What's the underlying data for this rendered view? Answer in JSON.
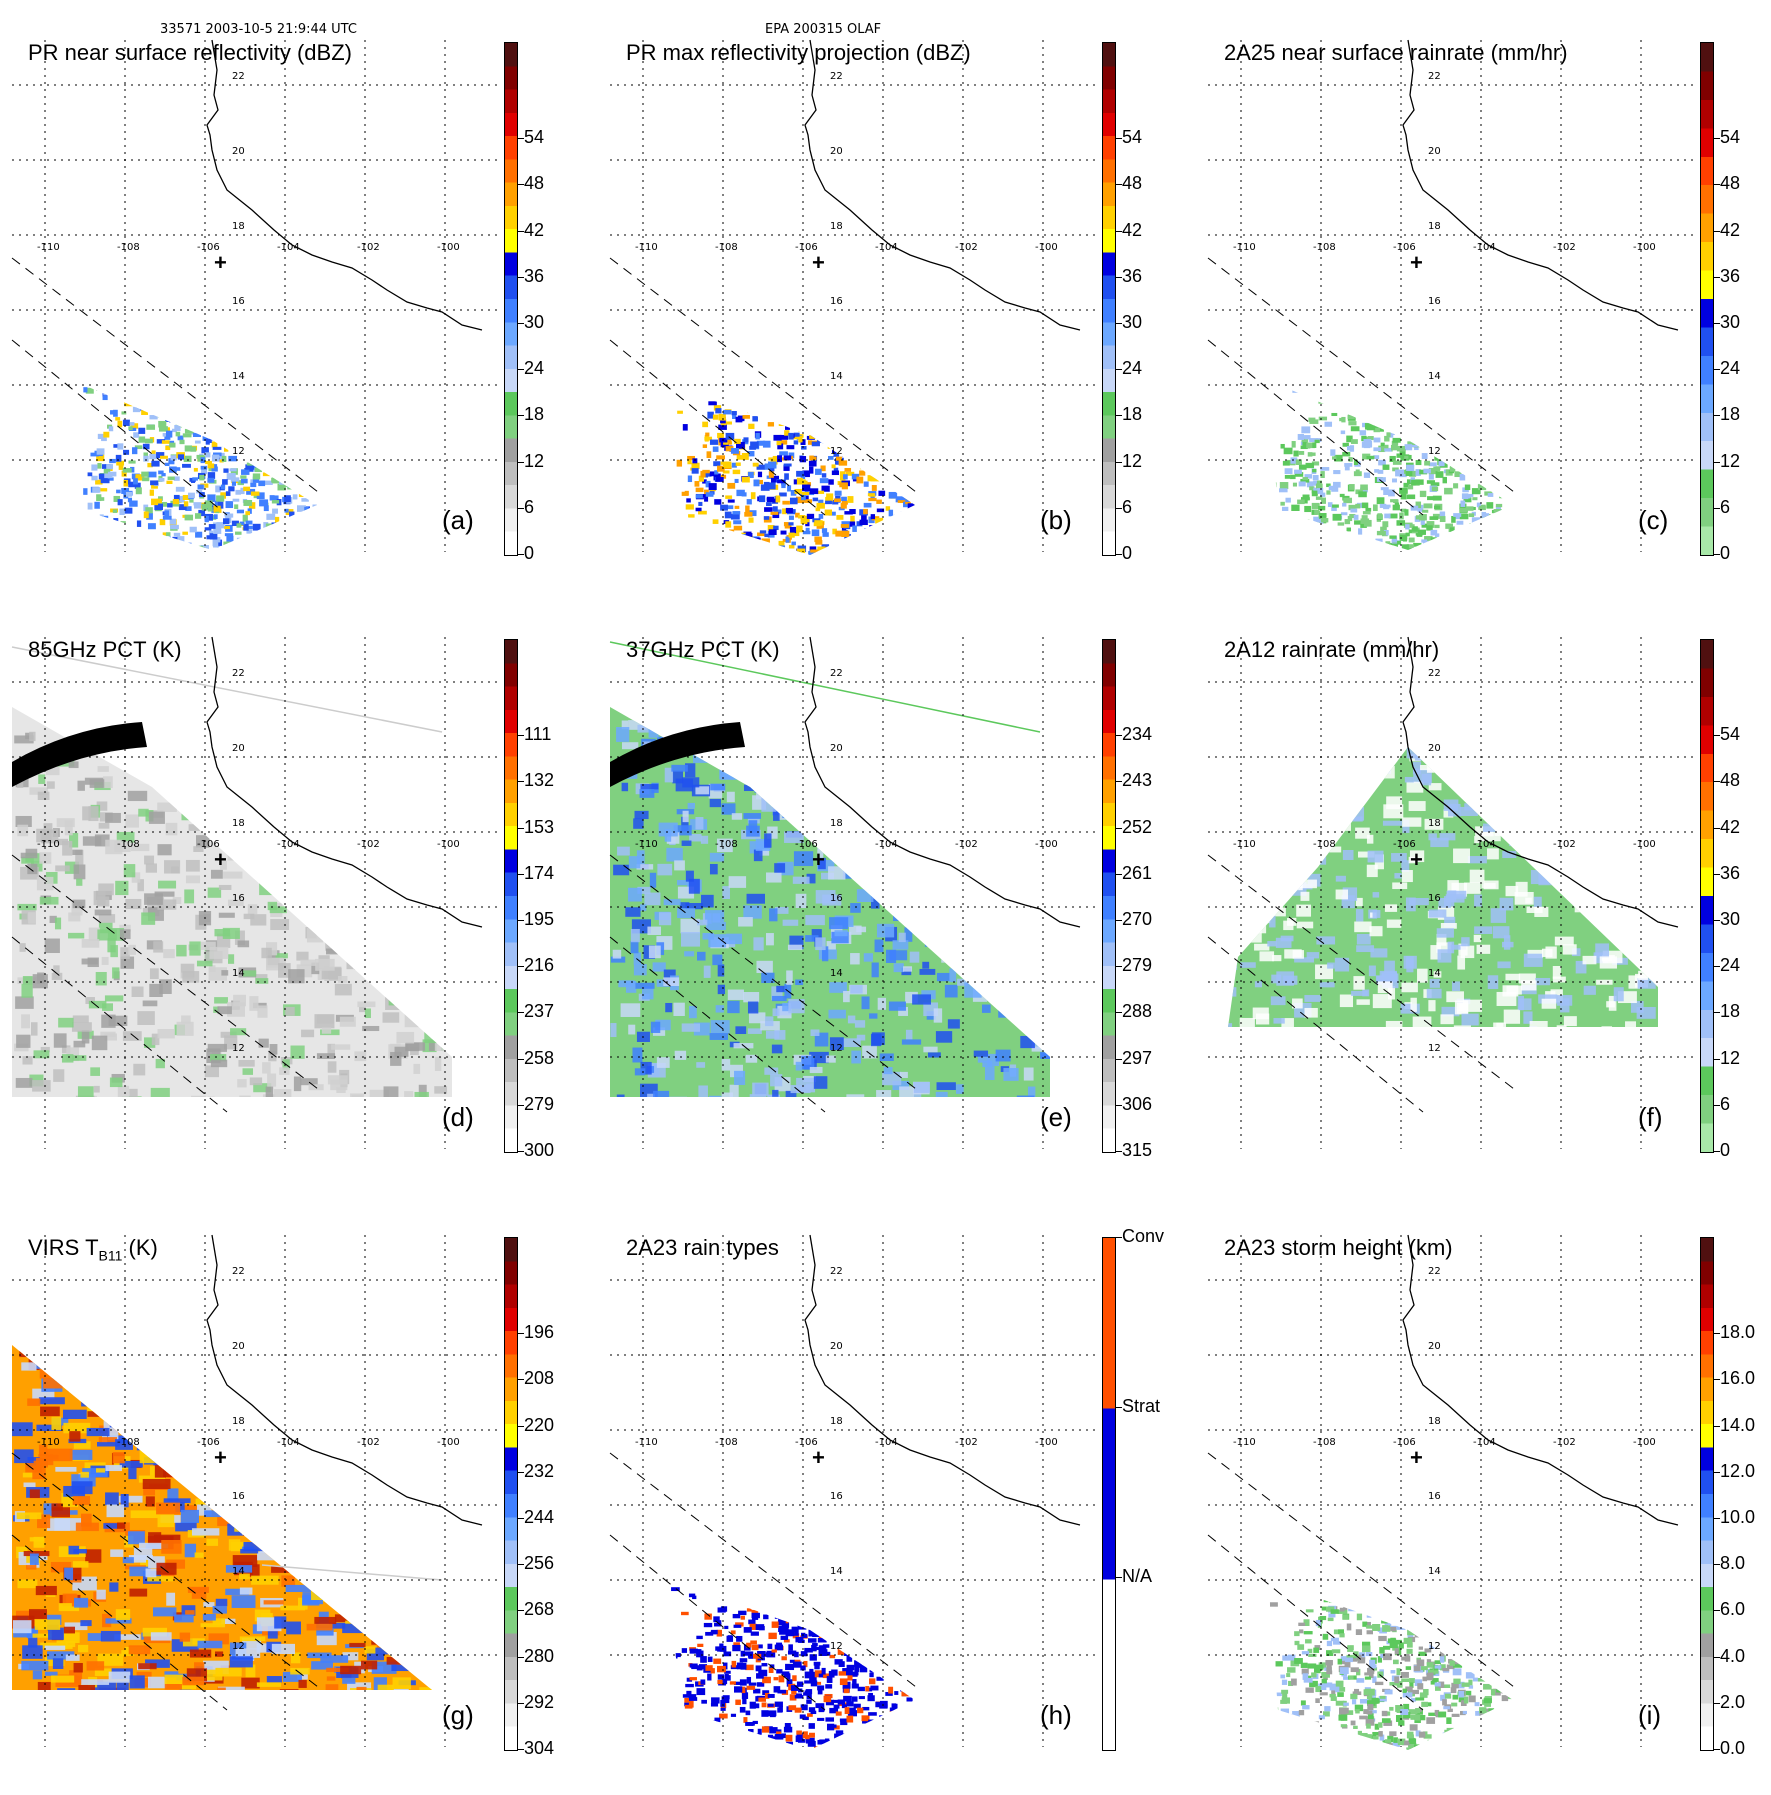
{
  "header": {
    "left": "33571 2003-10-5 21:9:44 UTC",
    "center": "EPA 200315 OLAF"
  },
  "map": {
    "lon_labels": [
      "-110",
      "-108",
      "-106",
      "-104",
      "-102",
      "-100"
    ],
    "lat_labels": [
      "12",
      "14",
      "16",
      "18",
      "20",
      "22"
    ],
    "storm_center": "+"
  },
  "panels": [
    {
      "id": "a",
      "title": "PR near surface reflectivity (dBZ)",
      "label": "(a)",
      "ticks": [
        "0",
        "6",
        "12",
        "18",
        "24",
        "30",
        "36",
        "42",
        "48",
        "54"
      ],
      "colors": [
        "#ffffff",
        "#f0f0f0",
        "#d8d8d8",
        "#bebebe",
        "#a0a0a0",
        "#80d080",
        "#5cc85c",
        "#c8d8f8",
        "#a0c0f8",
        "#6ca8ff",
        "#4080ff",
        "#2050f0",
        "#0000e0",
        "#ffff00",
        "#ffd000",
        "#ffa000",
        "#ff7000",
        "#ff4000",
        "#e00000",
        "#b00000",
        "#800000",
        "#501010"
      ]
    },
    {
      "id": "b",
      "title": "PR max reflectivity projection (dBZ)",
      "label": "(b)",
      "ticks": [
        "0",
        "6",
        "12",
        "18",
        "24",
        "30",
        "36",
        "42",
        "48",
        "54"
      ],
      "colors": [
        "#ffffff",
        "#f0f0f0",
        "#d8d8d8",
        "#bebebe",
        "#a0a0a0",
        "#80d080",
        "#5cc85c",
        "#c8d8f8",
        "#a0c0f8",
        "#6ca8ff",
        "#4080ff",
        "#2050f0",
        "#0000e0",
        "#ffff00",
        "#ffd000",
        "#ffa000",
        "#ff7000",
        "#ff4000",
        "#e00000",
        "#b00000",
        "#800000",
        "#501010"
      ]
    },
    {
      "id": "c",
      "title": "2A25 near surface rainrate (mm/hr)",
      "label": "(c)",
      "ticks": [
        "0",
        "6",
        "12",
        "18",
        "24",
        "30",
        "36",
        "42",
        "48",
        "54"
      ],
      "colors": [
        "#a8e8a8",
        "#80d080",
        "#5cc85c",
        "#c8d8f8",
        "#a0c0f8",
        "#6ca8ff",
        "#4080ff",
        "#2050f0",
        "#0000e0",
        "#ffff00",
        "#ffd000",
        "#ffa000",
        "#ff7000",
        "#ff4000",
        "#e00000",
        "#b00000",
        "#800000",
        "#501010"
      ]
    },
    {
      "id": "d",
      "title": "85GHz PCT (K)",
      "label": "(d)",
      "ticks": [
        "300",
        "279",
        "258",
        "237",
        "216",
        "195",
        "174",
        "153",
        "132",
        "111"
      ],
      "colors": [
        "#ffffff",
        "#f0f0f0",
        "#d8d8d8",
        "#bebebe",
        "#a0a0a0",
        "#80d080",
        "#5cc85c",
        "#c8d8f8",
        "#a0c0f8",
        "#6ca8ff",
        "#4080ff",
        "#2050f0",
        "#0000e0",
        "#ffff00",
        "#ffd000",
        "#ffa000",
        "#ff7000",
        "#ff4000",
        "#e00000",
        "#b00000",
        "#800000",
        "#501010"
      ]
    },
    {
      "id": "e",
      "title": "37GHz PCT (K)",
      "label": "(e)",
      "ticks": [
        "315",
        "306",
        "297",
        "288",
        "279",
        "270",
        "261",
        "252",
        "243",
        "234"
      ],
      "colors": [
        "#ffffff",
        "#f0f0f0",
        "#d8d8d8",
        "#bebebe",
        "#a0a0a0",
        "#80d080",
        "#5cc85c",
        "#c8d8f8",
        "#a0c0f8",
        "#6ca8ff",
        "#4080ff",
        "#2050f0",
        "#0000e0",
        "#ffff00",
        "#ffd000",
        "#ffa000",
        "#ff7000",
        "#ff4000",
        "#e00000",
        "#b00000",
        "#800000",
        "#501010"
      ]
    },
    {
      "id": "f",
      "title": "2A12 rainrate (mm/hr)",
      "label": "(f)",
      "ticks": [
        "0",
        "6",
        "12",
        "18",
        "24",
        "30",
        "36",
        "42",
        "48",
        "54"
      ],
      "colors": [
        "#a8e8a8",
        "#80d080",
        "#5cc85c",
        "#c8d8f8",
        "#a0c0f8",
        "#6ca8ff",
        "#4080ff",
        "#2050f0",
        "#0000e0",
        "#ffff00",
        "#ffd000",
        "#ffa000",
        "#ff7000",
        "#ff4000",
        "#e00000",
        "#b00000",
        "#800000",
        "#501010"
      ]
    },
    {
      "id": "g",
      "title_main": "VIRS T",
      "title_sub": "B11",
      "title_unit": " (K)",
      "label": "(g)",
      "ticks": [
        "304",
        "292",
        "280",
        "268",
        "256",
        "244",
        "232",
        "220",
        "208",
        "196"
      ],
      "colors": [
        "#ffffff",
        "#f0f0f0",
        "#d8d8d8",
        "#bebebe",
        "#a0a0a0",
        "#80d080",
        "#5cc85c",
        "#c8d8f8",
        "#a0c0f8",
        "#6ca8ff",
        "#4080ff",
        "#2050f0",
        "#0000e0",
        "#ffff00",
        "#ffd000",
        "#ffa000",
        "#ff7000",
        "#ff4000",
        "#e00000",
        "#b00000",
        "#800000",
        "#501010"
      ]
    },
    {
      "id": "h",
      "title": "2A23 rain types",
      "label": "(h)",
      "ticks": [
        "N/A",
        "Strat",
        "Conv"
      ],
      "colors": [
        "#ffffff",
        "#0000e0",
        "#ff5000"
      ]
    },
    {
      "id": "i",
      "title": "2A23 storm height (km)",
      "label": "(i)",
      "ticks": [
        "0.0",
        "2.0",
        "4.0",
        "6.0",
        "8.0",
        "10.0",
        "12.0",
        "14.0",
        "16.0",
        "18.0"
      ],
      "colors": [
        "#ffffff",
        "#f0f0f0",
        "#d8d8d8",
        "#bebebe",
        "#a0a0a0",
        "#80d080",
        "#5cc85c",
        "#c8d8f8",
        "#a0c0f8",
        "#6ca8ff",
        "#4080ff",
        "#2050f0",
        "#0000e0",
        "#ffff00",
        "#ffd000",
        "#ffa000",
        "#ff7000",
        "#ff4000",
        "#e00000",
        "#b00000",
        "#800000",
        "#501010"
      ]
    }
  ]
}
